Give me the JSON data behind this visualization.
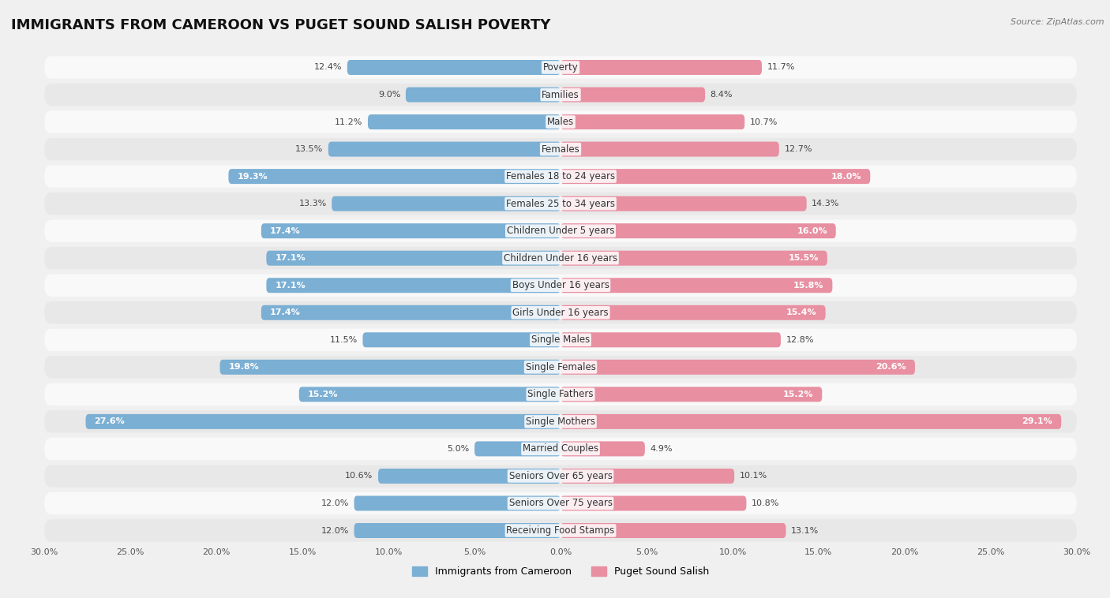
{
  "title": "IMMIGRANTS FROM CAMEROON VS PUGET SOUND SALISH POVERTY",
  "source": "Source: ZipAtlas.com",
  "categories": [
    "Poverty",
    "Families",
    "Males",
    "Females",
    "Females 18 to 24 years",
    "Females 25 to 34 years",
    "Children Under 5 years",
    "Children Under 16 years",
    "Boys Under 16 years",
    "Girls Under 16 years",
    "Single Males",
    "Single Females",
    "Single Fathers",
    "Single Mothers",
    "Married Couples",
    "Seniors Over 65 years",
    "Seniors Over 75 years",
    "Receiving Food Stamps"
  ],
  "left_values": [
    12.4,
    9.0,
    11.2,
    13.5,
    19.3,
    13.3,
    17.4,
    17.1,
    17.1,
    17.4,
    11.5,
    19.8,
    15.2,
    27.6,
    5.0,
    10.6,
    12.0,
    12.0
  ],
  "right_values": [
    11.7,
    8.4,
    10.7,
    12.7,
    18.0,
    14.3,
    16.0,
    15.5,
    15.8,
    15.4,
    12.8,
    20.6,
    15.2,
    29.1,
    4.9,
    10.1,
    10.8,
    13.1
  ],
  "left_color": "#7bafd4",
  "right_color": "#e88fa1",
  "left_label": "Immigrants from Cameroon",
  "right_label": "Puget Sound Salish",
  "xlim": 30.0,
  "bar_height": 0.55,
  "background_color": "#f0f0f0",
  "row_color_light": "#f9f9f9",
  "row_color_dark": "#e8e8e8",
  "title_fontsize": 13,
  "label_fontsize": 8.5,
  "value_fontsize": 8,
  "axis_fontsize": 8,
  "inside_threshold": 15.0
}
